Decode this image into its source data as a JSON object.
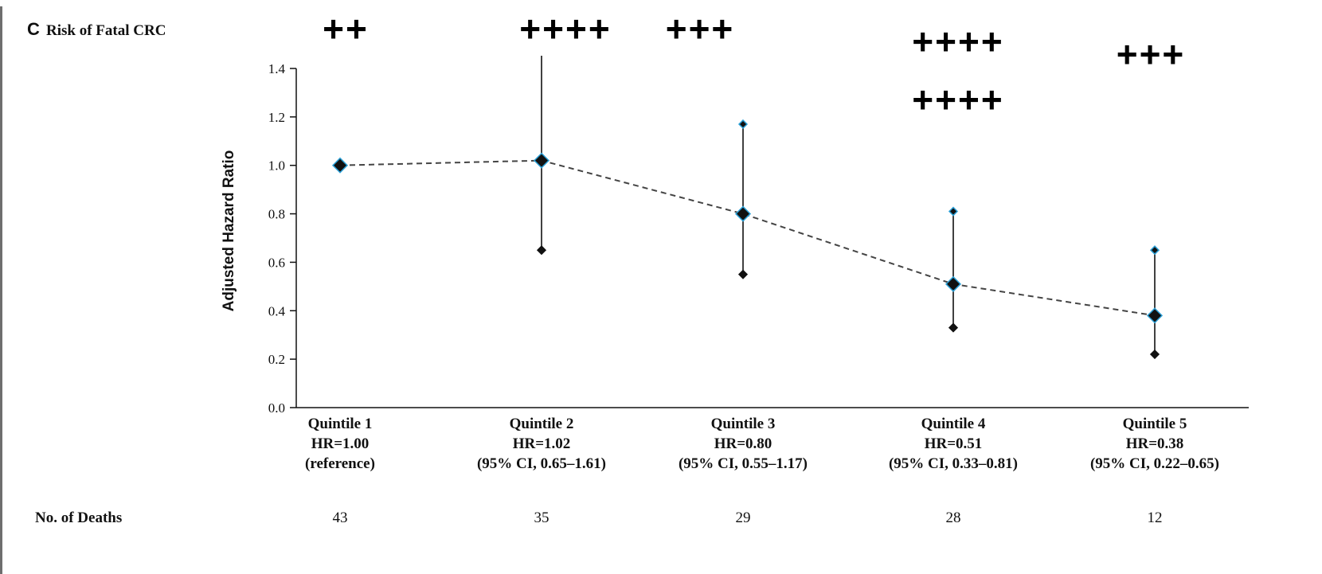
{
  "panel": {
    "letter": "C",
    "title": "Risk of Fatal CRC"
  },
  "chart_data": {
    "type": "scatter",
    "ylabel": "Adjusted Hazard Ratio",
    "ylim": [
      0.0,
      1.4
    ],
    "yticks": [
      "0.0",
      "0.2",
      "0.4",
      "0.6",
      "0.8",
      "1.0",
      "1.2",
      "1.4"
    ],
    "connector": "dashed",
    "categories": [
      {
        "name": "Quintile 1",
        "hr_label": "HR=1.00",
        "ci_label": "(reference)",
        "hr": 1.0,
        "ci_low": null,
        "ci_high": null,
        "deaths": "43"
      },
      {
        "name": "Quintile 2",
        "hr_label": "HR=1.02",
        "ci_label": "(95% CI, 0.65–1.61)",
        "hr": 1.02,
        "ci_low": 0.65,
        "ci_high": 1.61,
        "deaths": "35"
      },
      {
        "name": "Quintile 3",
        "hr_label": "HR=0.80",
        "ci_label": "(95% CI, 0.55–1.17)",
        "hr": 0.8,
        "ci_low": 0.55,
        "ci_high": 1.17,
        "deaths": "29"
      },
      {
        "name": "Quintile 4",
        "hr_label": "HR=0.51",
        "ci_label": "(95% CI, 0.33–0.81)",
        "hr": 0.51,
        "ci_low": 0.33,
        "ci_high": 0.81,
        "deaths": "28"
      },
      {
        "name": "Quintile 5",
        "hr_label": "HR=0.38",
        "ci_label": "(95% CI, 0.22–0.65)",
        "hr": 0.38,
        "ci_low": 0.22,
        "ci_high": 0.65,
        "deaths": "12"
      }
    ],
    "deaths_label": "No. of Deaths",
    "annotations": [
      {
        "category": 1,
        "rows": [
          "++"
        ]
      },
      {
        "category": 2,
        "rows": [
          "++++"
        ]
      },
      {
        "category": 3,
        "rows": [
          "+++"
        ]
      },
      {
        "category": 4,
        "rows": [
          "++++",
          "++++"
        ]
      },
      {
        "category": 5,
        "rows": [
          "+++"
        ]
      }
    ],
    "colors": {
      "marker_edge": "#2a9fd6",
      "marker_fill": "#111111",
      "line": "#444444",
      "text": "#111111"
    }
  }
}
